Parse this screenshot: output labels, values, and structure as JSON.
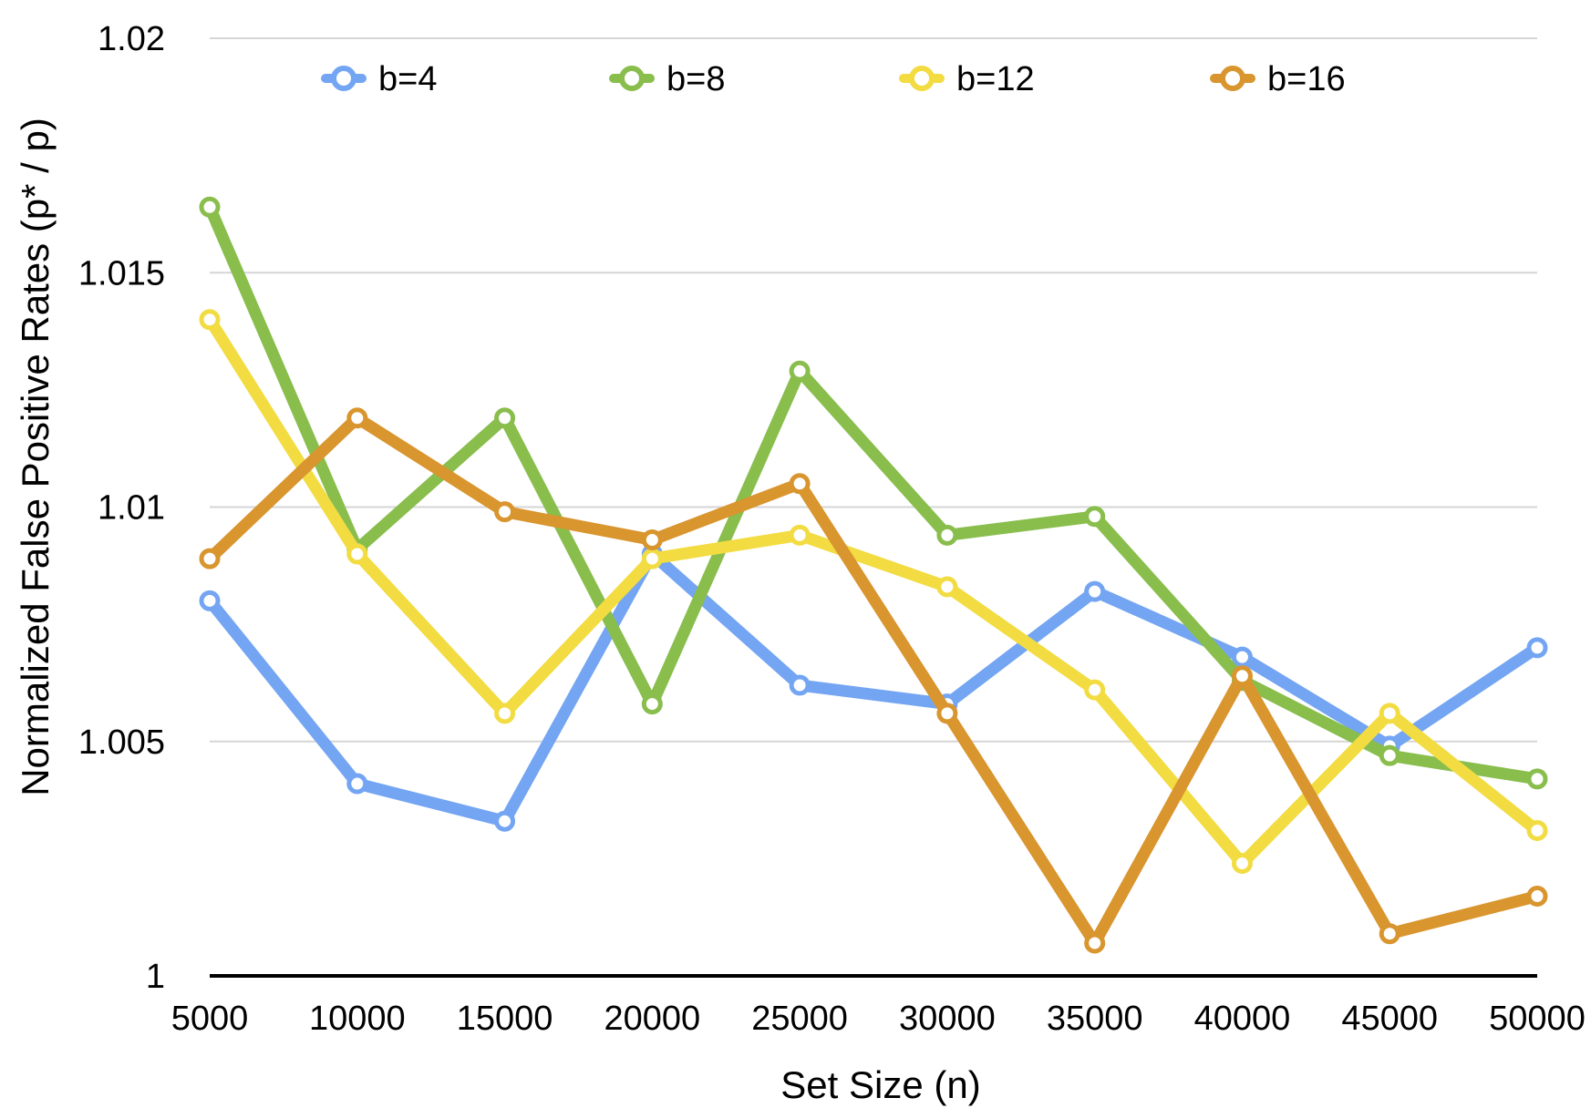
{
  "chart_data": {
    "type": "line",
    "title": "",
    "xlabel": "Set Size (n)",
    "ylabel": "Normalized False Positive Rates (p* / p)",
    "x": [
      5000,
      10000,
      15000,
      20000,
      25000,
      30000,
      35000,
      40000,
      45000,
      50000
    ],
    "x_tick_labels": [
      "5000",
      "10000",
      "15000",
      "20000",
      "25000",
      "30000",
      "35000",
      "40000",
      "45000",
      "50000"
    ],
    "ylim": [
      1,
      1.02
    ],
    "y_ticks": [
      1,
      1.005,
      1.01,
      1.015,
      1.02
    ],
    "y_tick_labels": [
      "1",
      "1.005",
      "1.01",
      "1.015",
      "1.02"
    ],
    "grid": "horizontal",
    "legend_position": "top",
    "series": [
      {
        "name": "b=4",
        "color": "#74A5F3",
        "values": [
          1.008,
          1.0041,
          1.0033,
          1.009,
          1.0062,
          1.0058,
          1.0082,
          1.0068,
          1.0049,
          1.007
        ]
      },
      {
        "name": "b=8",
        "color": "#89BE4D",
        "values": [
          1.0164,
          1.0091,
          1.0119,
          1.0058,
          1.0129,
          1.0094,
          1.0098,
          1.0063,
          1.0047,
          1.0042
        ]
      },
      {
        "name": "b=12",
        "color": "#F2DC42",
        "values": [
          1.014,
          1.009,
          1.0056,
          1.0089,
          1.0094,
          1.0083,
          1.0061,
          1.0024,
          1.0056,
          1.0031
        ]
      },
      {
        "name": "b=16",
        "color": "#D9952E",
        "values": [
          1.0089,
          1.0119,
          1.0099,
          1.0093,
          1.0105,
          1.0056,
          1.0007,
          1.0064,
          1.0009,
          1.0017
        ]
      }
    ]
  }
}
